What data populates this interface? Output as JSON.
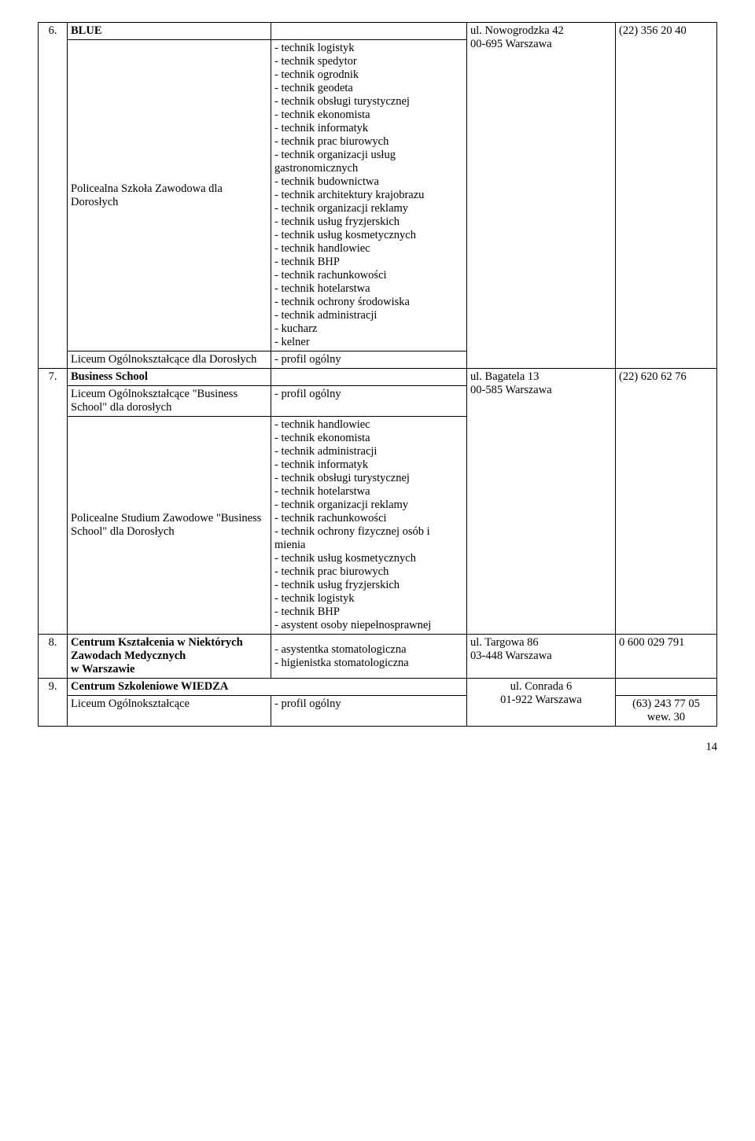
{
  "font_family": "Times New Roman",
  "font_size_pt": 11,
  "text_color": "#000000",
  "background_color": "#ffffff",
  "border_color": "#000000",
  "page_number": "14",
  "rows": {
    "r1": {
      "header": "BLUE",
      "num": "6.",
      "school_a": "Policealna Szkoła Zawodowa dla Dorosłych",
      "courses_a": "- technik logistyk\n- technik spedytor\n- technik ogrodnik\n- technik geodeta\n- technik obsługi turystycznej\n- technik ekonomista\n- technik informatyk\n- technik prac biurowych\n- technik organizacji usług gastronomicznych\n- technik budownictwa\n- technik architektury krajobrazu\n- technik organizacji reklamy\n- technik usług fryzjerskich\n- technik usług kosmetycznych\n- technik handlowiec\n- technik BHP\n- technik rachunkowości\n- technik hotelarstwa\n- technik ochrony środowiska\n- technik administracji\n- kucharz\n- kelner",
      "school_b": "Liceum Ogólnokształcące dla Dorosłych",
      "courses_b": "- profil ogólny",
      "addr_line1": "ul. Nowogrodzka 42",
      "addr_line2": "00-695 Warszawa",
      "phone": "(22) 356 20 40"
    },
    "r2": {
      "header": "Business School",
      "num": "7.",
      "school_a": "Liceum Ogólnokształcące \"Business School\" dla dorosłych",
      "courses_a": "- profil ogólny",
      "school_b": "Policealne Studium Zawodowe \"Business School\" dla Dorosłych",
      "courses_b": "- technik handlowiec\n- technik ekonomista\n- technik administracji\n- technik informatyk\n- technik obsługi turystycznej\n- technik hotelarstwa\n- technik organizacji reklamy\n- technik rachunkowości\n- technik ochrony fizycznej osób i mienia\n- technik usług kosmetycznych\n- technik prac biurowych\n- technik usług fryzjerskich\n- technik logistyk\n- technik BHP\n- asystent osoby niepełnosprawnej",
      "addr_line1": "ul. Bagatela 13",
      "addr_line2": "00-585 Warszawa",
      "phone": "(22) 620 62 76"
    },
    "r3": {
      "num": "8.",
      "school": "Centrum Kształcenia w Niektórych Zawodach Medycznych\nw Warszawie",
      "courses": "- asystentka stomatologiczna\n- higienistka stomatologiczna",
      "addr_line1": "ul. Targowa 86",
      "addr_line2": "03-448 Warszawa",
      "phone": "0 600 029 791"
    },
    "r4": {
      "header": "Centrum Szkoleniowe WIEDZA",
      "num": "9.",
      "school": "Liceum Ogólnokształcące",
      "courses": "- profil ogólny",
      "addr_line1": "ul. Conrada 6",
      "addr_line2": "01-922 Warszawa",
      "phone": "(63) 243 77 05\nwew. 30"
    }
  }
}
